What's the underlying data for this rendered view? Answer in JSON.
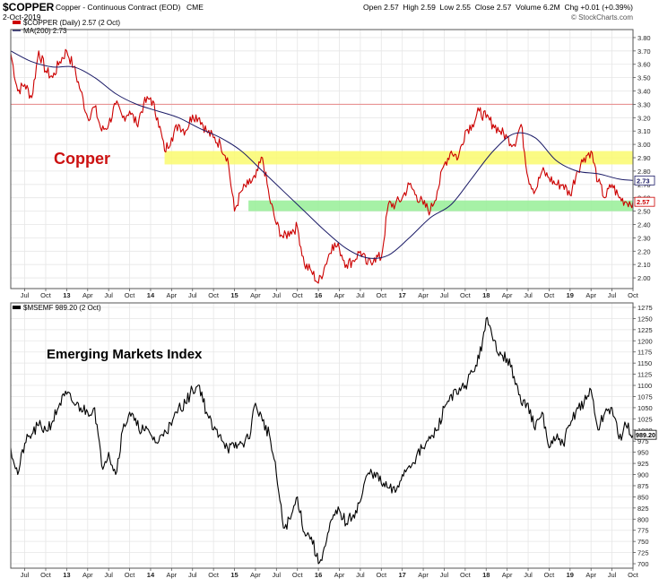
{
  "header": {
    "symbol": "$COPPER",
    "description": "Copper - Continuous Contract (EOD)",
    "exchange": "CME",
    "date": "2-Oct-2019",
    "quote": "Open 2.57  High 2.59  Low 2.55  Close 2.57  Volume 6.2M  Chg +0.01 (+0.39%)",
    "watermark": "© StockCharts.com"
  },
  "colors": {
    "copper_line": "#cc0000",
    "ma_line": "#1a1a66",
    "em_line": "#000000",
    "yellow_band": "#fafa6e",
    "green_band": "#96ee96",
    "hline": "#e88888",
    "grid": "#e6e6e6",
    "axis": "#555555",
    "copper_title_color": "#cc1111"
  },
  "chart_data": [
    {
      "type": "line",
      "title": "Copper",
      "legend": [
        {
          "key": "price",
          "text": "$COPPER (Daily) 2.57 (2 Oct)"
        },
        {
          "key": "ma",
          "text": "MA(200) 2.73"
        }
      ],
      "x_axis": [
        "Jul",
        "Oct",
        "13",
        "Apr",
        "Jul",
        "Oct",
        "14",
        "Apr",
        "Jul",
        "Oct",
        "15",
        "Apr",
        "Jul",
        "Oct",
        "16",
        "Apr",
        "Jul",
        "Oct",
        "17",
        "Apr",
        "Jul",
        "Oct",
        "18",
        "Apr",
        "Jul",
        "Oct",
        "19",
        "Apr",
        "Jul",
        "Oct"
      ],
      "x_axis_years": [
        "13",
        "14",
        "15",
        "16",
        "17",
        "18",
        "19"
      ],
      "x_range": [
        "2012-05",
        "2019-10"
      ],
      "y_ticks": [
        3.8,
        3.7,
        3.6,
        3.5,
        3.4,
        3.3,
        3.2,
        3.1,
        3.0,
        2.9,
        2.8,
        2.7,
        2.6,
        2.5,
        2.4,
        2.3,
        2.2,
        2.1,
        2.0
      ],
      "y_tick_labels": [
        "3.80",
        "3.70",
        "3.60",
        "3.50",
        "3.40",
        "3.30",
        "3.20",
        "3.10",
        "3.00",
        "2.90",
        "2.80",
        "2.70",
        "2.60",
        "2.50",
        "2.40",
        "2.30",
        "2.20",
        "2.10",
        "2.00"
      ],
      "ylim": [
        1.92,
        3.86
      ],
      "last_value_labels": [
        "2.73",
        "2.57"
      ],
      "horizontal_line": 3.3,
      "bands": [
        {
          "color": "yellow",
          "from": "2014-03",
          "to": "2019-10",
          "y_low": 2.85,
          "y_high": 2.95
        },
        {
          "color": "green",
          "from": "2015-03",
          "to": "2019-10",
          "y_low": 2.5,
          "y_high": 2.58
        }
      ],
      "series": [
        {
          "key": "price",
          "x": [
            "2012-05",
            "2012-06",
            "2012-07",
            "2012-08",
            "2012-09",
            "2012-10",
            "2012-11",
            "2012-12",
            "2013-01",
            "2013-02",
            "2013-03",
            "2013-04",
            "2013-05",
            "2013-06",
            "2013-07",
            "2013-08",
            "2013-09",
            "2013-10",
            "2013-11",
            "2013-12",
            "2014-01",
            "2014-02",
            "2014-03",
            "2014-04",
            "2014-05",
            "2014-06",
            "2014-07",
            "2014-08",
            "2014-09",
            "2014-10",
            "2014-11",
            "2014-12",
            "2015-01",
            "2015-02",
            "2015-03",
            "2015-04",
            "2015-05",
            "2015-06",
            "2015-07",
            "2015-08",
            "2015-09",
            "2015-10",
            "2015-11",
            "2015-12",
            "2016-01",
            "2016-02",
            "2016-03",
            "2016-04",
            "2016-05",
            "2016-06",
            "2016-07",
            "2016-08",
            "2016-09",
            "2016-10",
            "2016-11",
            "2016-12",
            "2017-01",
            "2017-02",
            "2017-03",
            "2017-04",
            "2017-05",
            "2017-06",
            "2017-07",
            "2017-08",
            "2017-09",
            "2017-10",
            "2017-11",
            "2017-12",
            "2018-01",
            "2018-02",
            "2018-03",
            "2018-04",
            "2018-05",
            "2018-06",
            "2018-07",
            "2018-08",
            "2018-09",
            "2018-10",
            "2018-11",
            "2018-12",
            "2019-01",
            "2019-02",
            "2019-03",
            "2019-04",
            "2019-05",
            "2019-06",
            "2019-07",
            "2019-08",
            "2019-09",
            "2019-10"
          ],
          "y": [
            3.68,
            3.4,
            3.45,
            3.35,
            3.7,
            3.55,
            3.5,
            3.62,
            3.7,
            3.58,
            3.4,
            3.2,
            3.28,
            3.1,
            3.15,
            3.3,
            3.2,
            3.25,
            3.15,
            3.3,
            3.35,
            3.2,
            2.95,
            3.05,
            3.15,
            3.1,
            3.22,
            3.2,
            3.1,
            3.05,
            3.0,
            2.9,
            2.5,
            2.65,
            2.7,
            2.75,
            2.9,
            2.6,
            2.4,
            2.3,
            2.35,
            2.38,
            2.1,
            2.05,
            1.96,
            2.1,
            2.25,
            2.22,
            2.1,
            2.13,
            2.2,
            2.1,
            2.15,
            2.15,
            2.55,
            2.55,
            2.6,
            2.7,
            2.62,
            2.55,
            2.5,
            2.65,
            2.85,
            2.95,
            2.9,
            3.1,
            3.15,
            3.25,
            3.2,
            3.15,
            3.1,
            3.05,
            3.0,
            3.15,
            2.75,
            2.65,
            2.8,
            2.75,
            2.7,
            2.7,
            2.62,
            2.8,
            2.9,
            2.95,
            2.72,
            2.6,
            2.7,
            2.6,
            2.57,
            2.57
          ]
        },
        {
          "key": "ma",
          "x": [
            "2012-05",
            "2012-08",
            "2012-11",
            "2013-02",
            "2013-05",
            "2013-08",
            "2013-11",
            "2014-02",
            "2014-05",
            "2014-08",
            "2014-11",
            "2015-02",
            "2015-05",
            "2015-08",
            "2015-11",
            "2016-02",
            "2016-05",
            "2016-08",
            "2016-11",
            "2017-02",
            "2017-05",
            "2017-08",
            "2017-11",
            "2018-02",
            "2018-05",
            "2018-08",
            "2018-11",
            "2019-02",
            "2019-05",
            "2019-08",
            "2019-10"
          ],
          "y": [
            3.7,
            3.62,
            3.58,
            3.58,
            3.5,
            3.38,
            3.3,
            3.25,
            3.2,
            3.12,
            3.05,
            2.95,
            2.8,
            2.65,
            2.5,
            2.35,
            2.22,
            2.15,
            2.17,
            2.3,
            2.45,
            2.55,
            2.75,
            2.95,
            3.08,
            3.05,
            2.88,
            2.8,
            2.78,
            2.74,
            2.73
          ]
        }
      ]
    },
    {
      "type": "line",
      "title": "Emerging Markets Index",
      "legend": [
        {
          "key": "em",
          "text": "$MSEMF 989.20 (2 Oct)"
        }
      ],
      "x_axis": [
        "Jul",
        "Oct",
        "13",
        "Apr",
        "Jul",
        "Oct",
        "14",
        "Apr",
        "Jul",
        "Oct",
        "15",
        "Apr",
        "Jul",
        "Oct",
        "16",
        "Apr",
        "Jul",
        "Oct",
        "17",
        "Apr",
        "Jul",
        "Oct",
        "18",
        "Apr",
        "Jul",
        "Oct",
        "19",
        "Apr",
        "Jul",
        "Oct"
      ],
      "x_axis_years": [
        "13",
        "14",
        "15",
        "16",
        "17",
        "18",
        "19"
      ],
      "x_range": [
        "2012-05",
        "2019-10"
      ],
      "y_ticks": [
        1275,
        1250,
        1225,
        1200,
        1175,
        1150,
        1125,
        1100,
        1075,
        1050,
        1025,
        1000,
        975,
        950,
        925,
        900,
        875,
        850,
        825,
        800,
        775,
        750,
        725,
        700
      ],
      "y_tick_labels": [
        "1275",
        "1250",
        "1225",
        "1200",
        "1175",
        "1150",
        "1125",
        "1100",
        "1075",
        "1050",
        "1025",
        "1000",
        "975",
        "950",
        "925",
        "900",
        "875",
        "850",
        "825",
        "800",
        "775",
        "750",
        "725",
        "700"
      ],
      "ylim": [
        690,
        1285
      ],
      "last_value_label": "989.20",
      "series": [
        {
          "key": "em",
          "x": [
            "2012-05",
            "2012-06",
            "2012-07",
            "2012-08",
            "2012-09",
            "2012-10",
            "2012-11",
            "2012-12",
            "2013-01",
            "2013-02",
            "2013-03",
            "2013-04",
            "2013-05",
            "2013-06",
            "2013-07",
            "2013-08",
            "2013-09",
            "2013-10",
            "2013-11",
            "2013-12",
            "2014-01",
            "2014-02",
            "2014-03",
            "2014-04",
            "2014-05",
            "2014-06",
            "2014-07",
            "2014-08",
            "2014-09",
            "2014-10",
            "2014-11",
            "2014-12",
            "2015-01",
            "2015-02",
            "2015-03",
            "2015-04",
            "2015-05",
            "2015-06",
            "2015-07",
            "2015-08",
            "2015-09",
            "2015-10",
            "2015-11",
            "2015-12",
            "2016-01",
            "2016-02",
            "2016-03",
            "2016-04",
            "2016-05",
            "2016-06",
            "2016-07",
            "2016-08",
            "2016-09",
            "2016-10",
            "2016-11",
            "2016-12",
            "2017-01",
            "2017-02",
            "2017-03",
            "2017-04",
            "2017-05",
            "2017-06",
            "2017-07",
            "2017-08",
            "2017-09",
            "2017-10",
            "2017-11",
            "2017-12",
            "2018-01",
            "2018-02",
            "2018-03",
            "2018-04",
            "2018-05",
            "2018-06",
            "2018-07",
            "2018-08",
            "2018-09",
            "2018-10",
            "2018-11",
            "2018-12",
            "2019-01",
            "2019-02",
            "2019-03",
            "2019-04",
            "2019-05",
            "2019-06",
            "2019-07",
            "2019-08",
            "2019-09",
            "2019-10"
          ],
          "y": [
            960,
            900,
            970,
            990,
            1010,
            1000,
            1020,
            1060,
            1080,
            1060,
            1050,
            1040,
            1050,
            920,
            950,
            900,
            1000,
            1040,
            1010,
            1000,
            990,
            970,
            1000,
            1010,
            1050,
            1060,
            1090,
            1100,
            1040,
            1000,
            990,
            960,
            960,
            970,
            980,
            1060,
            1020,
            990,
            900,
            780,
            800,
            850,
            770,
            760,
            700,
            740,
            800,
            820,
            790,
            810,
            840,
            900,
            905,
            880,
            870,
            860,
            900,
            920,
            940,
            960,
            980,
            1000,
            1050,
            1080,
            1080,
            1100,
            1130,
            1160,
            1250,
            1200,
            1175,
            1160,
            1120,
            1060,
            1060,
            1000,
            1040,
            960,
            980,
            970,
            1010,
            1050,
            1060,
            1090,
            1000,
            1040,
            1050,
            980,
            1010,
            989.2
          ]
        }
      ]
    }
  ]
}
